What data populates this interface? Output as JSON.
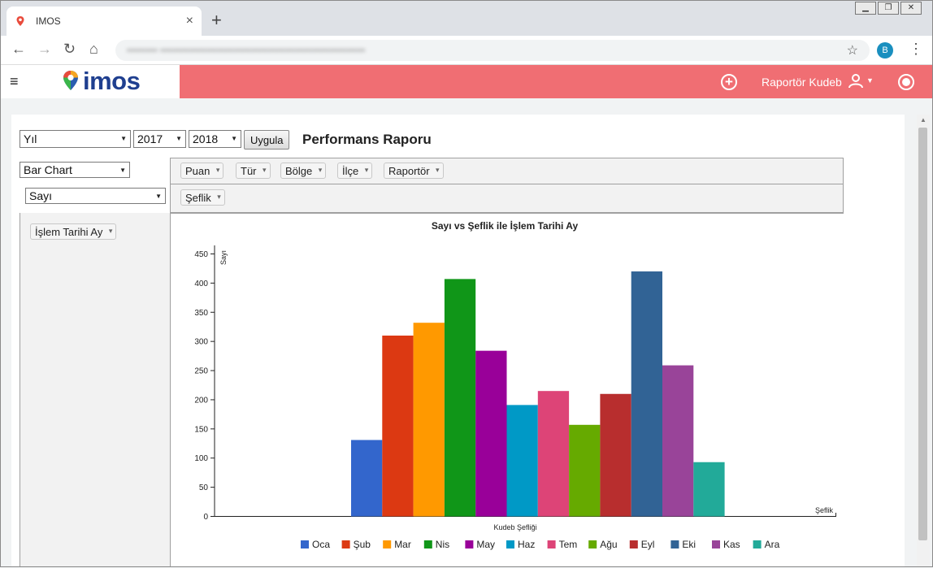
{
  "browser": {
    "tab_title": "IMOS",
    "tab_close": "×",
    "new_tab": "+",
    "url": "••••••••• ••••••••••••••••••••••••••••••••••••••••••••••••••••••••••••",
    "profile_initial": "B"
  },
  "header": {
    "logo_text": "imos",
    "user_name": "Raportör Kudeb"
  },
  "filters": {
    "period_select": "Yıl",
    "year_from": "2017",
    "year_to": "2018",
    "apply_button": "Uygula",
    "page_title": "Performans Raporu",
    "chart_type_select": "Bar Chart",
    "measure_select": "Sayı"
  },
  "pivot": {
    "column_fields": [
      "Puan",
      "Tür",
      "Bölge",
      "İlçe",
      "Raportör"
    ],
    "column_field2": "Şeflik",
    "row_field": "İşlem Tarihi Ay"
  },
  "chart_data": {
    "type": "bar",
    "title": "Sayı vs Şeflik ile İşlem Tarihi Ay",
    "xlabel": "Kudeb Şefliği",
    "ylabel": "Sayı",
    "x_axis_end_label": "Şeflik",
    "ylim": [
      0,
      460
    ],
    "yticks": [
      0,
      50,
      100,
      150,
      200,
      250,
      300,
      350,
      400,
      450
    ],
    "legend_position": "bottom",
    "series": [
      {
        "name": "Oca",
        "value": 131,
        "color": "#3366cc"
      },
      {
        "name": "Şub",
        "value": 310,
        "color": "#dc3912"
      },
      {
        "name": "Mar",
        "value": 332,
        "color": "#ff9900"
      },
      {
        "name": "Nis",
        "value": 407,
        "color": "#109618"
      },
      {
        "name": "May",
        "value": 284,
        "color": "#990099"
      },
      {
        "name": "Haz",
        "value": 191,
        "color": "#0099c6"
      },
      {
        "name": "Tem",
        "value": 215,
        "color": "#dd4477"
      },
      {
        "name": "Ağu",
        "value": 157,
        "color": "#66aa00"
      },
      {
        "name": "Eyl",
        "value": 210,
        "color": "#b82e2e"
      },
      {
        "name": "Eki",
        "value": 420,
        "color": "#316395"
      },
      {
        "name": "Kas",
        "value": 259,
        "color": "#994499"
      },
      {
        "name": "Ara",
        "value": 93,
        "color": "#22aa99"
      }
    ]
  }
}
